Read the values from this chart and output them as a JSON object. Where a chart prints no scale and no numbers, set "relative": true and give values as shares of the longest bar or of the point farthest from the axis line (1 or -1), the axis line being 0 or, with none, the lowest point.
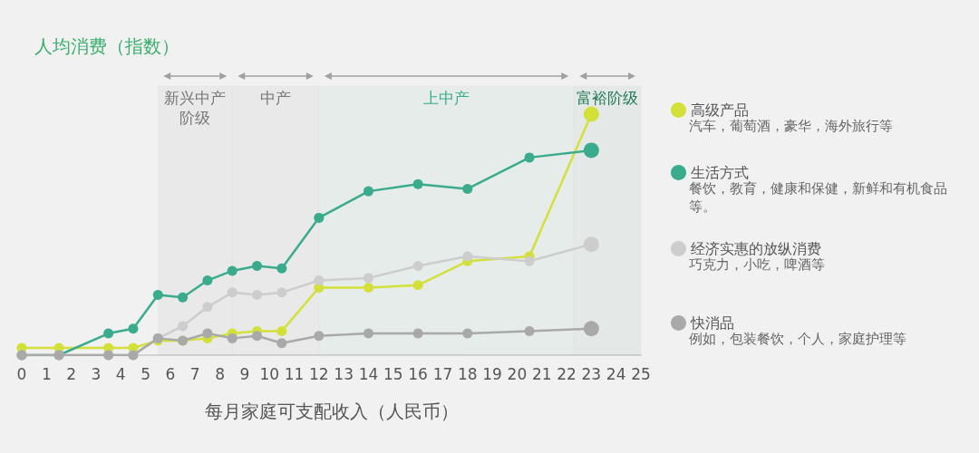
{
  "chart_data": {
    "type": "line",
    "title": "人均消费（指数）",
    "xlabel": "每月家庭可支配收入（人民币）",
    "relative": true,
    "x": [
      0,
      1.5,
      3.5,
      4.5,
      5.5,
      6.5,
      7.5,
      8.5,
      9.5,
      10.5,
      12,
      14,
      16,
      18,
      20.5,
      23
    ],
    "xlim": [
      0,
      25
    ],
    "xticks": [
      0,
      1,
      2,
      3,
      4,
      5,
      6,
      7,
      8,
      9,
      10,
      11,
      12,
      13,
      14,
      15,
      16,
      17,
      18,
      19,
      20,
      21,
      22,
      23,
      24,
      25
    ],
    "series": [
      {
        "name": "高级产品",
        "color": "#d4e03a",
        "values": [
          0.03,
          0.03,
          0.03,
          0.03,
          0.06,
          0.06,
          0.07,
          0.09,
          0.1,
          0.1,
          0.28,
          0.28,
          0.29,
          0.39,
          0.41,
          1.0
        ]
      },
      {
        "name": "生活方式",
        "color": "#3aab8c",
        "values": [
          0,
          0,
          0.09,
          0.11,
          0.25,
          0.24,
          0.31,
          0.35,
          0.37,
          0.36,
          0.57,
          0.68,
          0.71,
          0.69,
          0.82,
          0.85
        ]
      },
      {
        "name": "经济实惠的放纵消费",
        "color": "#cdcdcd",
        "values": [
          0,
          0,
          0,
          0,
          0.07,
          0.12,
          0.2,
          0.26,
          0.25,
          0.26,
          0.31,
          0.32,
          0.37,
          0.41,
          0.39,
          0.46
        ]
      },
      {
        "name": "快消品",
        "color": "#a9a9a9",
        "values": [
          0,
          0,
          0,
          0,
          0.07,
          0.06,
          0.09,
          0.07,
          0.08,
          0.05,
          0.08,
          0.09,
          0.09,
          0.09,
          0.1,
          0.11
        ]
      }
    ],
    "bands": [
      {
        "axis": "x",
        "from": 5.5,
        "to": 8.5,
        "label": "新兴中产阶级",
        "color": "#777777"
      },
      {
        "axis": "x",
        "from": 8.5,
        "to": 12,
        "label": "中产",
        "color": "#777777"
      },
      {
        "axis": "x",
        "from": 12,
        "to": 22.3,
        "label": "上中产",
        "color": "#3aab8c"
      },
      {
        "axis": "x",
        "from": 22.3,
        "to": 25,
        "label": "富裕阶级",
        "color": "#1f7a55"
      }
    ],
    "annotations": [
      "汽车，葡萄酒，豪华，海外旅行等",
      "餐饮，教育，健康和保健，新鲜和有机食品等。",
      "巧克力，小吃，啤酒等",
      "例如，包装餐饮，个人，家庭护理等"
    ],
    "legend": "right",
    "marker": "circle",
    "line_style": "solid",
    "grid": false
  }
}
